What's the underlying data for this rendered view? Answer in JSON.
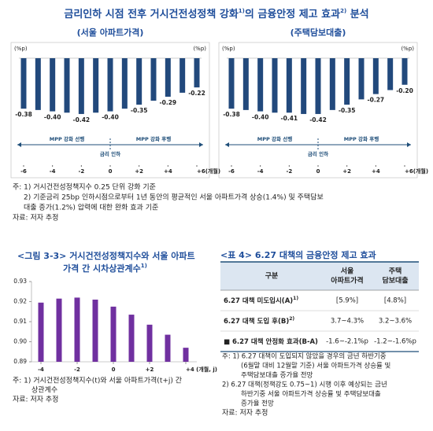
{
  "title": {
    "text1": "금리인하 시점 전후 거시건전성정책 강화",
    "sup1": "1)",
    "text2": "의 금융안정 제고 효과",
    "sup2": "2)",
    "text3": " 분석"
  },
  "policy_charts": [
    {
      "type": "bar",
      "subtitle": "(서울 아파트가격)",
      "y_unit": "(%p)",
      "ylim": [
        -0.45,
        0
      ],
      "color": "#22497c",
      "x": [
        -6,
        -5,
        -4,
        -3,
        -2,
        -1,
        0,
        1,
        2,
        3,
        4,
        5,
        6
      ],
      "values": [
        -0.38,
        -0.39,
        -0.4,
        -0.41,
        -0.42,
        -0.41,
        -0.4,
        -0.38,
        -0.35,
        -0.32,
        -0.29,
        -0.26,
        -0.22
      ],
      "value_labels": [
        "-0.38",
        null,
        "-0.40",
        null,
        "-0.42",
        null,
        "-0.40",
        null,
        "-0.35",
        null,
        "-0.29",
        null,
        "-0.22"
      ],
      "xlim": [
        -6,
        6
      ],
      "xticks": [
        -6,
        -4,
        -2,
        0,
        {
          "value": 2,
          "label": "+2"
        },
        {
          "value": 4,
          "label": "+4"
        },
        {
          "value": 6,
          "label": "+6(개월)"
        }
      ],
      "annotations": {
        "lead": "MPP 강화 선행",
        "lag": "MPP 강화 후행",
        "cut": "금리 인하"
      }
    },
    {
      "type": "bar",
      "subtitle": "(주택담보대출)",
      "y_unit": "(%p)",
      "ylim": [
        -0.45,
        0
      ],
      "color": "#22497c",
      "x": [
        -6,
        -5,
        -4,
        -3,
        -2,
        -1,
        0,
        1,
        2,
        3,
        4,
        5,
        6
      ],
      "values": [
        -0.38,
        -0.39,
        -0.4,
        -0.41,
        -0.41,
        -0.42,
        -0.42,
        -0.39,
        -0.35,
        -0.31,
        -0.27,
        -0.24,
        -0.2
      ],
      "value_labels": [
        "-0.38",
        null,
        "-0.40",
        null,
        "-0.41",
        null,
        "-0.42",
        null,
        "-0.35",
        null,
        "-0.27",
        null,
        "-0.20"
      ],
      "xlim": [
        -6,
        6
      ],
      "xticks": [
        -6,
        -4,
        -2,
        0,
        {
          "value": 2,
          "label": "+2"
        },
        {
          "value": 4,
          "label": "+4"
        },
        {
          "value": 6,
          "label": "+6(개월)"
        }
      ],
      "annotations": {
        "lead": "MPP 강화 선행",
        "lag": "MPP 강화 후행",
        "cut": "금리 인하"
      }
    }
  ],
  "top_notes": {
    "lines": [
      "주: 1) 거시건전성정책지수 0.25 단위 강화 기준",
      "2) 기준금리 25bp 인하시점으로부터 1년 동안의 평균적인 서울 아파트가격 상승(1.4%) 및 주택담보",
      "대출 증가(1.2%) 압력에 대한 완화 효과 기준"
    ],
    "source": "자료: 저자 추정"
  },
  "figure": {
    "title_line1": "<그림 3-3> 거시건전성정책지수와 서울 아파트",
    "title_line2": "가격 간 시차상관계수",
    "title_sup": "1)",
    "chart": {
      "type": "bar",
      "color": "#7030a0",
      "x": [
        -4,
        -3,
        -2,
        -1,
        0,
        1,
        2,
        3,
        4
      ],
      "values": [
        0.9195,
        0.9215,
        0.922,
        0.921,
        0.9175,
        0.9135,
        0.9085,
        0.9035,
        0.897
      ],
      "ylim": [
        0.89,
        0.93
      ],
      "yticks": [
        0.89,
        {
          "value": 0.9,
          "label": "0.90"
        },
        0.91,
        0.92,
        0.93
      ],
      "xlim": [
        -4,
        4
      ],
      "xticks": [
        -4,
        -2,
        0,
        {
          "value": 2,
          "label": "+2"
        },
        {
          "value": 4,
          "label": "+4 (개월, j)"
        }
      ]
    },
    "notes": [
      "주: 1) 거시건전성정책지수(t)와 서울 아파트가격(t+j) 간",
      "상관계수"
    ],
    "source": "자료: 저자 추정"
  },
  "table": {
    "title": "<표 4> 6.27 대책의 금융안정 제고 효과",
    "header": [
      [
        "구분"
      ],
      [
        "서울",
        "아파트가격"
      ],
      [
        "주택",
        "담보대출"
      ]
    ],
    "rows": [
      {
        "label": "6.27 대책 미도입시(A)",
        "sup": "1)",
        "cells": [
          "[5.9%]",
          "[4.8%]"
        ]
      },
      {
        "label": "6.27 대책 도입 후(B)",
        "sup": "2)",
        "cells": [
          "3.7~4.3%",
          "3.2~3.6%"
        ]
      },
      {
        "label": "■ 6.27 대책 안정화 효과(B-A)",
        "sup": null,
        "cells": [
          "-1.6~-2.1%p",
          "-1.2~-1.6%p"
        ]
      }
    ],
    "notes": [
      "주: 1) 6.27 대책이 도입되지 않았을 경우의 금년 하반기중",
      "(6월말 대비 12월말 기준) 서울 아파트가격 상승률 및",
      "주택담보대출 증가율 전망",
      "2) 6.27 대책(정책강도 0.75~1) 시행 이후 예상되는 금년",
      "하반기중 서울 아파트가격 상승률 및 주택담보대출",
      "증가율 전망"
    ],
    "source": "자료: 저자 추정"
  }
}
